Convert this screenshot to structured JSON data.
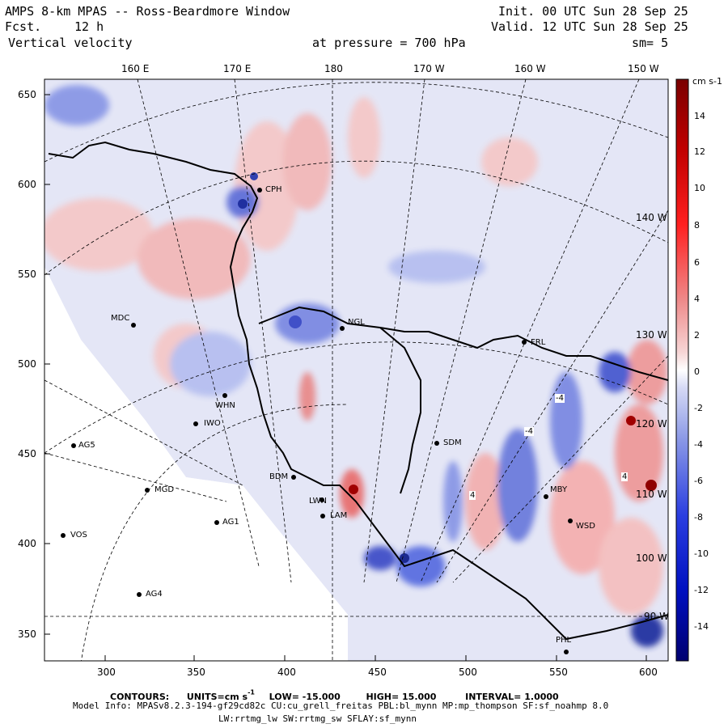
{
  "header": {
    "title": "AMPS 8-km MPAS -- Ross-Beardmore Window",
    "forecast_label": "Fcst.",
    "forecast_hours": "12 h",
    "variable": "Vertical velocity",
    "pressure_text": "at pressure =  700 hPa",
    "smoothing": "sm= 5",
    "init": "Init. 00 UTC Sun 28 Sep 25",
    "valid": "Valid. 12 UTC Sun 28 Sep 25"
  },
  "longitude_labels": [
    "160 E",
    "170 E",
    "180",
    "170 W",
    "160 W",
    "150 W"
  ],
  "inner_lon_labels": [
    "140 W",
    "130 W",
    "120 W",
    "110 W",
    "100 W",
    "90 W"
  ],
  "y_axis_labels": [
    "650",
    "600",
    "550",
    "500",
    "450",
    "400",
    "350"
  ],
  "x_axis_labels": [
    "300",
    "350",
    "400",
    "450",
    "500",
    "550",
    "600"
  ],
  "colorbar": {
    "units": "cm s-1",
    "labels": [
      "14",
      "12",
      "10",
      "8",
      "6",
      "4",
      "2",
      "0",
      "-2",
      "-4",
      "-6",
      "-8",
      "-10",
      "-12",
      "-14"
    ],
    "colors": {
      "neg_strong": "#00008b",
      "neg_mid": "#5a6ee0",
      "neg_light": "#c8ceef",
      "zero": "#ffffff",
      "pos_light": "#f4c8c8",
      "pos_mid": "#e87a7a",
      "pos_strong": "#8b0000"
    }
  },
  "stations": [
    {
      "name": "CPH"
    },
    {
      "name": "MDC"
    },
    {
      "name": "NGL"
    },
    {
      "name": "WHN"
    },
    {
      "name": "IWO"
    },
    {
      "name": "AG5"
    },
    {
      "name": "MGD"
    },
    {
      "name": "AG1"
    },
    {
      "name": "VOS"
    },
    {
      "name": "AG4"
    },
    {
      "name": "SDM"
    },
    {
      "name": "BDM"
    },
    {
      "name": "LWN"
    },
    {
      "name": "LAM"
    },
    {
      "name": "MBY"
    },
    {
      "name": "WSD"
    },
    {
      "name": "PHL"
    },
    {
      "name": "FRL"
    }
  ],
  "contour_labels": [
    "-4",
    "-4",
    "4",
    "4"
  ],
  "footer": {
    "contours_label": "CONTOURS:",
    "units_label": "UNITS=cm s",
    "units_exp": "-1",
    "low": "LOW= -15.000",
    "high": "HIGH=  15.000",
    "interval": "INTERVAL=   1.0000",
    "model_info": "Model Info: MPASv8.2.3-194-gf29cd82c CU:cu_grell_freitas PBL:bl_mynn MP:mp_thompson SF:sf_noahmp 8.0",
    "model_info2": "LW:rrtmg_lw SW:rrtmg_sw SFLAY:sf_mynn"
  }
}
